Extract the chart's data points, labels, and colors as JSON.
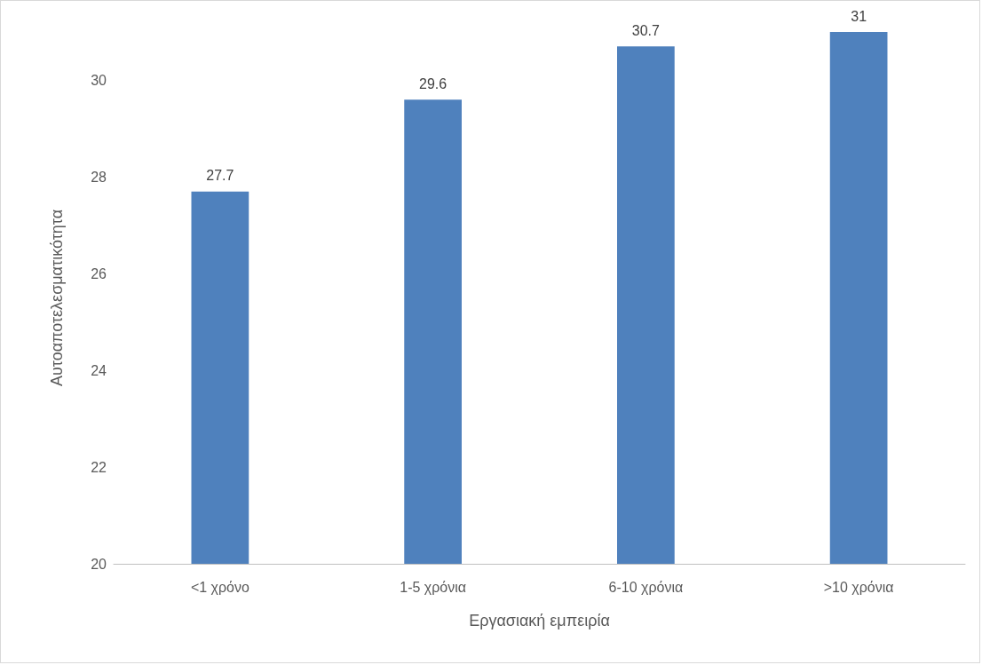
{
  "chart_data": {
    "type": "bar",
    "xlabel": "Εργασιακή εμπειρία",
    "ylabel": "Αυτοαποτελεσματικότητα",
    "categories": [
      "<1 χρόνο",
      "1-5 χρόνια",
      "6-10 χρόνια",
      ">10 χρόνια"
    ],
    "values": [
      27.7,
      29.6,
      30.7,
      31
    ],
    "color": "#4f81bd",
    "ylim": [
      20,
      31
    ],
    "yticks": [
      20,
      22,
      24,
      26,
      28,
      30
    ],
    "grid": false,
    "data_labels": true
  }
}
